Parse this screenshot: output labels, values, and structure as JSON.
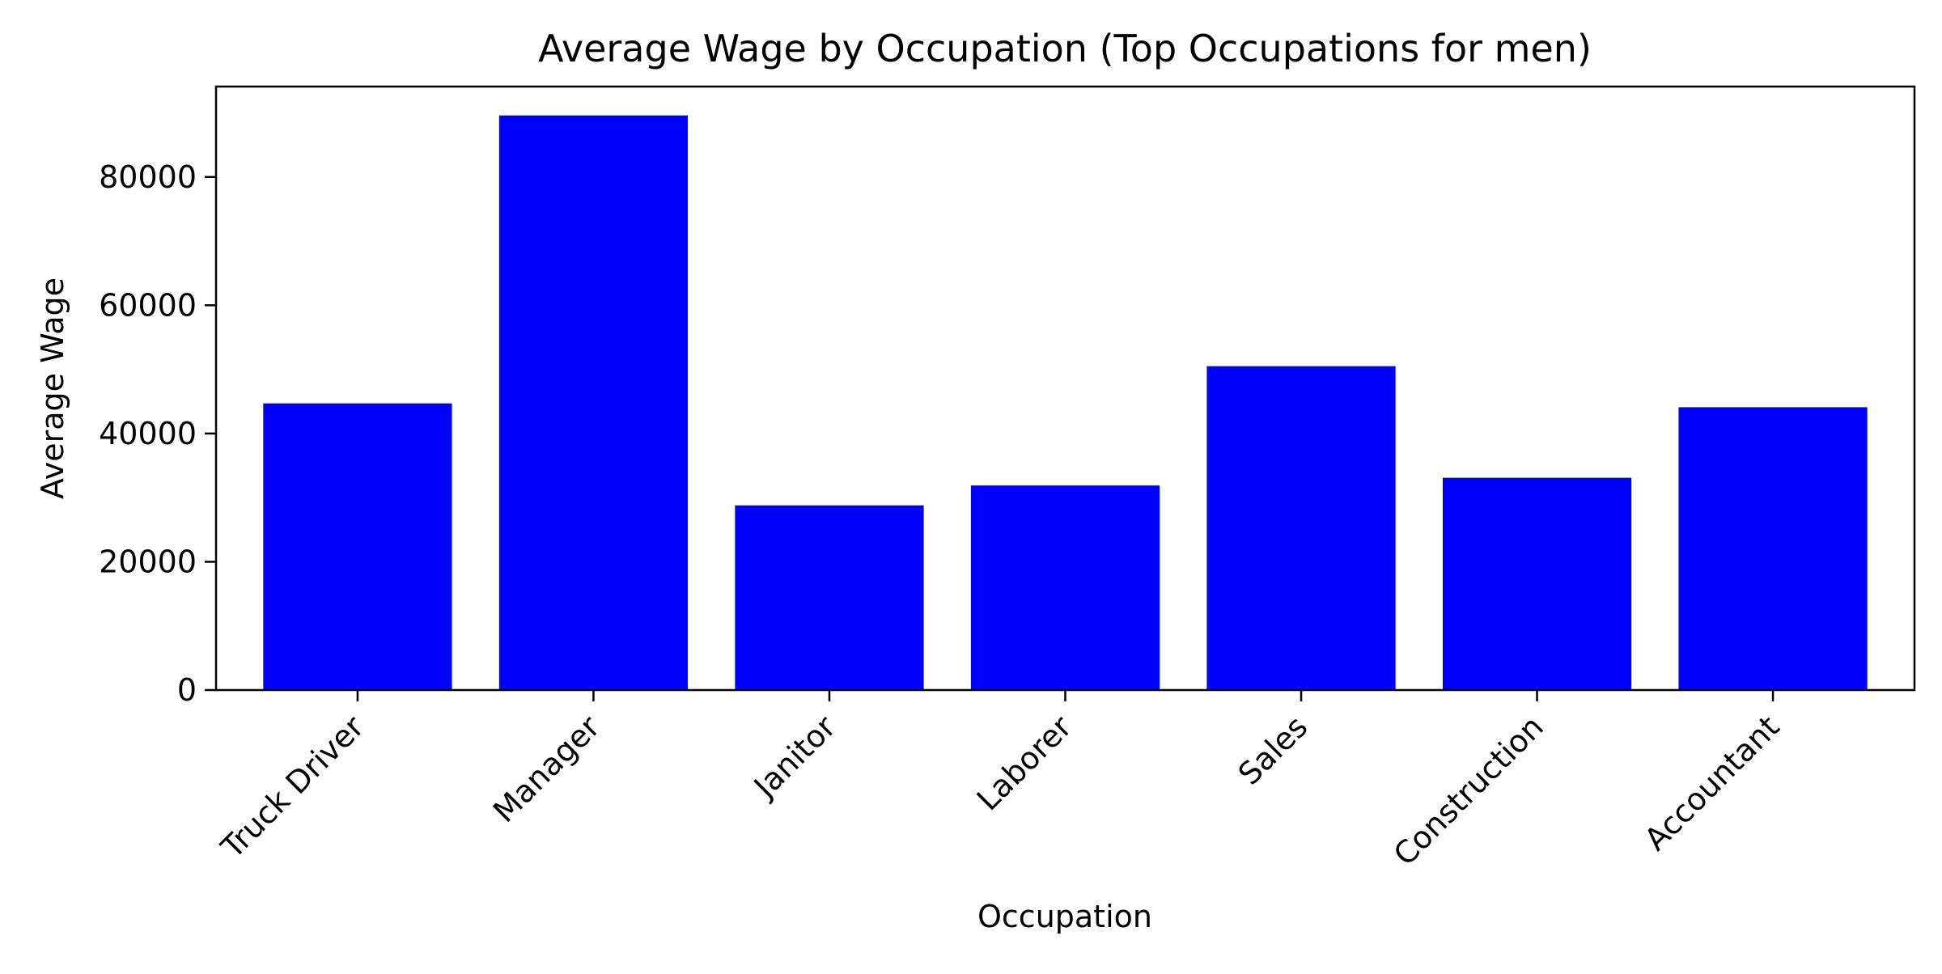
{
  "chart_data": {
    "type": "bar",
    "title": "Average Wage by Occupation (Top Occupations for men)",
    "xlabel": "Occupation",
    "ylabel": "Average Wage",
    "categories": [
      "Truck Driver",
      "Manager",
      "Janitor",
      "Laborer",
      "Sales",
      "Construction",
      "Accountant"
    ],
    "values": [
      44700,
      89600,
      28800,
      31900,
      50500,
      33100,
      44100
    ],
    "ylim": [
      0,
      94100
    ],
    "yticks": [
      0,
      20000,
      40000,
      60000,
      80000
    ],
    "bar_color": "#0000ff",
    "grid": false,
    "legend": "none"
  }
}
